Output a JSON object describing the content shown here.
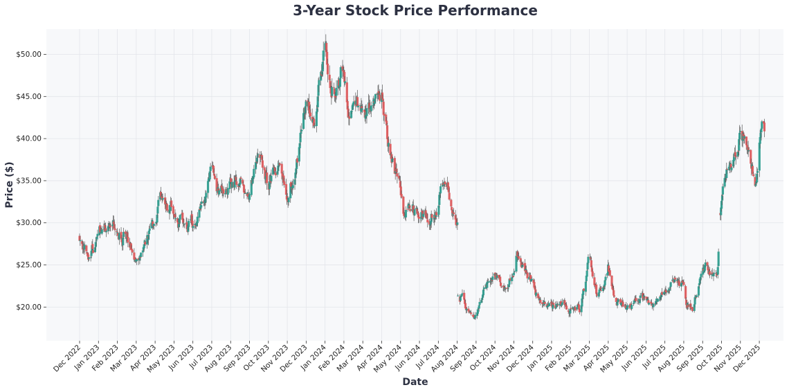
{
  "chart_data": {
    "type": "candlestick",
    "title": "3-Year Stock Price Performance",
    "xlabel": "Date",
    "ylabel": "Price ($)",
    "ylim": [
      16,
      53
    ],
    "yticks": [
      20,
      25,
      30,
      35,
      40,
      45,
      50
    ],
    "ytick_labels": [
      "$20.00",
      "$25.00",
      "$30.00",
      "$35.00",
      "$40.00",
      "$45.00",
      "$50.00"
    ],
    "xtick_labels": [
      "Dec 2022",
      "Jan 2023",
      "Feb 2023",
      "Mar 2023",
      "Apr 2023",
      "May 2023",
      "Jun 2023",
      "Jul 2023",
      "Aug 2023",
      "Sep 2023",
      "Oct 2023",
      "Nov 2023",
      "Dec 2023",
      "Jan 2024",
      "Feb 2024",
      "Mar 2024",
      "Apr 2024",
      "May 2024",
      "Jun 2024",
      "Jul 2024",
      "Aug 2024",
      "Sep 2024",
      "Oct 2024",
      "Nov 2024",
      "Dec 2024",
      "Jan 2025",
      "Feb 2025",
      "Mar 2025",
      "Apr 2025",
      "May 2025",
      "Jun 2025",
      "Jul 2025",
      "Aug 2025",
      "Sep 2025",
      "Oct 2025",
      "Nov 2025",
      "Dec 2025"
    ],
    "x_start": "2022-12-01",
    "up_color": "#2a9d8f",
    "down_color": "#e05759",
    "wick_color": "#555555",
    "plot_background": "#f7f8fa",
    "grid": true,
    "price_anchors": [
      [
        "2022-12-01",
        28.5
      ],
      [
        "2022-12-15",
        26.0
      ],
      [
        "2023-01-01",
        28.5
      ],
      [
        "2023-01-15",
        30.0
      ],
      [
        "2023-02-01",
        29.0
      ],
      [
        "2023-02-15",
        28.5
      ],
      [
        "2023-03-01",
        25.5
      ],
      [
        "2023-03-15",
        27.0
      ],
      [
        "2023-04-01",
        30.0
      ],
      [
        "2023-04-10",
        33.0
      ],
      [
        "2023-05-01",
        31.0
      ],
      [
        "2023-05-20",
        29.5
      ],
      [
        "2023-06-01",
        30.0
      ],
      [
        "2023-06-20",
        32.5
      ],
      [
        "2023-07-01",
        35.5
      ],
      [
        "2023-07-15",
        33.0
      ],
      [
        "2023-08-01",
        34.5
      ],
      [
        "2023-08-20",
        35.0
      ],
      [
        "2023-09-01",
        33.0
      ],
      [
        "2023-09-15",
        38.0
      ],
      [
        "2023-10-01",
        34.5
      ],
      [
        "2023-10-15",
        36.5
      ],
      [
        "2023-11-01",
        33.5
      ],
      [
        "2023-11-20",
        39.0
      ],
      [
        "2023-12-01",
        44.0
      ],
      [
        "2023-12-15",
        42.0
      ],
      [
        "2024-01-01",
        50.5
      ],
      [
        "2024-01-10",
        47.5
      ],
      [
        "2024-01-20",
        46.5
      ],
      [
        "2024-01-31",
        49.0
      ],
      [
        "2024-02-05",
        43.5
      ],
      [
        "2024-02-20",
        43.0
      ],
      [
        "2024-03-01",
        44.0
      ],
      [
        "2024-03-20",
        43.0
      ],
      [
        "2024-04-01",
        44.5
      ],
      [
        "2024-04-05",
        41.5
      ],
      [
        "2024-04-20",
        36.0
      ],
      [
        "2024-05-01",
        34.5
      ],
      [
        "2024-05-05",
        31.5
      ],
      [
        "2024-06-01",
        31.0
      ],
      [
        "2024-07-01",
        31.0
      ],
      [
        "2024-07-05",
        34.0
      ],
      [
        "2024-07-15",
        35.0
      ],
      [
        "2024-08-01",
        30.0
      ],
      [
        "2024-08-02",
        21.5
      ],
      [
        "2024-08-15",
        20.0
      ],
      [
        "2024-09-01",
        19.5
      ],
      [
        "2024-09-20",
        23.5
      ],
      [
        "2024-10-15",
        23.0
      ],
      [
        "2024-11-01",
        23.5
      ],
      [
        "2024-11-05",
        25.5
      ],
      [
        "2024-12-01",
        22.5
      ],
      [
        "2024-12-15",
        20.5
      ],
      [
        "2025-01-15",
        20.0
      ],
      [
        "2025-02-01",
        20.0
      ],
      [
        "2025-02-15",
        19.5
      ],
      [
        "2025-03-01",
        25.5
      ],
      [
        "2025-03-15",
        21.0
      ],
      [
        "2025-04-01",
        25.0
      ],
      [
        "2025-04-15",
        20.5
      ],
      [
        "2025-05-01",
        19.5
      ],
      [
        "2025-05-15",
        21.0
      ],
      [
        "2025-06-01",
        21.0
      ],
      [
        "2025-06-15",
        20.5
      ],
      [
        "2025-07-01",
        21.5
      ],
      [
        "2025-07-15",
        23.0
      ],
      [
        "2025-08-01",
        23.0
      ],
      [
        "2025-08-05",
        21.0
      ],
      [
        "2025-08-15",
        20.0
      ],
      [
        "2025-09-01",
        24.5
      ],
      [
        "2025-09-15",
        24.5
      ],
      [
        "2025-09-25",
        24.8
      ],
      [
        "2025-09-28",
        29.5
      ],
      [
        "2025-10-05",
        35.5
      ],
      [
        "2025-10-20",
        37.5
      ],
      [
        "2025-11-01",
        40.5
      ],
      [
        "2025-11-15",
        38.0
      ],
      [
        "2025-11-25",
        34.0
      ],
      [
        "2025-12-05",
        43.0
      ],
      [
        "2025-12-09",
        41.0
      ]
    ]
  }
}
